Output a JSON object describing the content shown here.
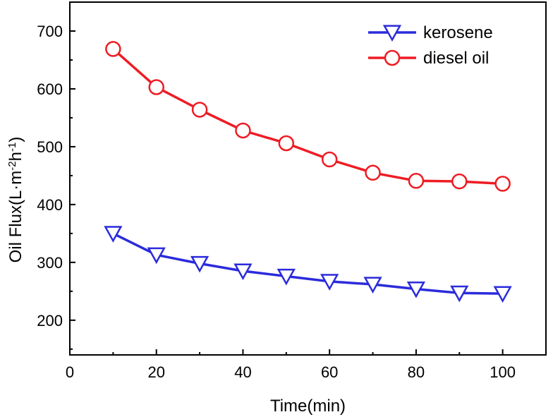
{
  "chart_data": {
    "type": "line",
    "title": "",
    "xlabel": "Time(min)",
    "ylabel": {
      "parts": [
        "Oil Flux(L",
        "·",
        "m",
        "-2",
        "h",
        "-1",
        ")"
      ],
      "display": "Oil Flux(L·m-2h-1)"
    },
    "xlim": [
      0,
      110
    ],
    "ylim": [
      140,
      750
    ],
    "x_ticks": [
      0,
      20,
      40,
      60,
      80,
      100
    ],
    "y_ticks": [
      200,
      300,
      400,
      500,
      600,
      700
    ],
    "x_tick_labels": [
      "0",
      "20",
      "40",
      "60",
      "80",
      "100"
    ],
    "y_tick_labels": [
      "200",
      "300",
      "400",
      "500",
      "600",
      "700"
    ],
    "grid": false,
    "legend_position": "top-right",
    "x": [
      10,
      20,
      30,
      40,
      50,
      60,
      70,
      80,
      90,
      100
    ],
    "series": [
      {
        "name": "kerosene",
        "color": "#2b2bdc",
        "marker": "triangle-down",
        "values": [
          350,
          313,
          298,
          285,
          276,
          267,
          262,
          254,
          247,
          246
        ]
      },
      {
        "name": "diesel oil",
        "color": "#ee1c24",
        "marker": "circle",
        "values": [
          669,
          603,
          564,
          528,
          506,
          478,
          455,
          441,
          440,
          436
        ]
      }
    ]
  }
}
